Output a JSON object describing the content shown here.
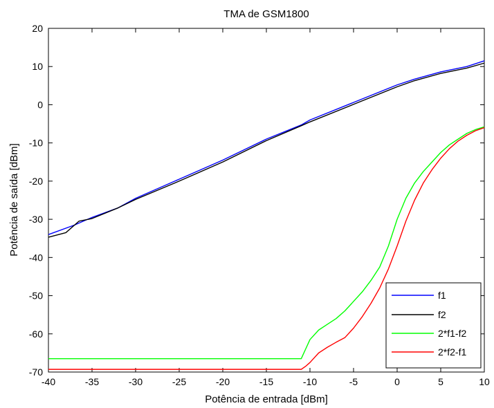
{
  "chart_data": {
    "type": "line",
    "title": "TMA de GSM1800",
    "xlabel": "Potência de entrada [dBm]",
    "ylabel": "Potência de saída [dBm]",
    "xlim": [
      -40,
      10
    ],
    "ylim": [
      -70,
      20
    ],
    "xticks": [
      -40,
      -35,
      -30,
      -25,
      -20,
      -15,
      -10,
      -5,
      0,
      5,
      10
    ],
    "yticks": [
      20,
      10,
      0,
      -10,
      -20,
      -30,
      -40,
      -50,
      -60,
      -70
    ],
    "grid": false,
    "legend_position": "bottom-right",
    "series": [
      {
        "name": "f1",
        "color": "#0000ff",
        "x": [
          -40,
          -37,
          -35,
          -32,
          -30,
          -25,
          -20,
          -15,
          -11,
          -10,
          -5,
          0,
          2,
          5,
          8,
          10
        ],
        "y": [
          -34,
          -31.5,
          -29.5,
          -27,
          -24.5,
          -19.5,
          -14.5,
          -9,
          -5.3,
          -4,
          0.6,
          5.2,
          6.7,
          8.6,
          10,
          11.5
        ]
      },
      {
        "name": "f2",
        "color": "#000000",
        "x": [
          -40,
          -38,
          -36.5,
          -35,
          -32,
          -30,
          -25,
          -20,
          -15,
          -11,
          -10,
          -5,
          0,
          2,
          5,
          8,
          10
        ],
        "y": [
          -34.7,
          -33.5,
          -30.5,
          -29.8,
          -27,
          -24.8,
          -20,
          -15,
          -9.4,
          -5.5,
          -4.5,
          0.1,
          4.7,
          6.3,
          8.2,
          9.6,
          10.9
        ]
      },
      {
        "name": "2*f1-f2",
        "color": "#00ff00",
        "x": [
          -40,
          -15,
          -11,
          -10.5,
          -10,
          -9,
          -8,
          -7,
          -6,
          -5,
          -4,
          -3,
          -2,
          -1,
          0,
          1,
          2,
          3,
          4,
          5,
          6,
          7,
          8,
          9,
          10
        ],
        "y": [
          -66.5,
          -66.5,
          -66.5,
          -64,
          -61.5,
          -59,
          -57.5,
          -56,
          -54,
          -51.5,
          -49,
          -46,
          -42.5,
          -37,
          -30,
          -24.5,
          -20.5,
          -17.5,
          -15,
          -12.5,
          -10.5,
          -9,
          -7.5,
          -6.5,
          -5.8
        ]
      },
      {
        "name": "2*f2-f1",
        "color": "#ff0000",
        "x": [
          -40,
          -15,
          -11,
          -10.5,
          -10,
          -9,
          -8,
          -7,
          -6,
          -5,
          -4,
          -3,
          -2,
          -1,
          0,
          1,
          2,
          3,
          4,
          5,
          6,
          7,
          8,
          9,
          10
        ],
        "y": [
          -69.3,
          -69.3,
          -69.3,
          -68.5,
          -67.5,
          -65,
          -63.5,
          -62.2,
          -61,
          -58.5,
          -55.5,
          -52,
          -48,
          -43,
          -37,
          -30.5,
          -25,
          -20.5,
          -17,
          -14,
          -11.5,
          -9.5,
          -8,
          -6.8,
          -6
        ]
      }
    ]
  }
}
